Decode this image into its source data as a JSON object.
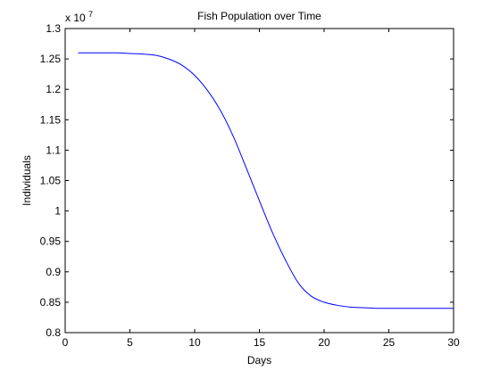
{
  "chart_data": {
    "type": "line",
    "title": "Fish Population over Time",
    "xlabel": "Days",
    "ylabel": "Individuals",
    "xlim": [
      0,
      30
    ],
    "ylim": [
      0.8,
      1.3
    ],
    "xticks": [
      0,
      5,
      10,
      15,
      20,
      25,
      30
    ],
    "yticks": [
      0.8,
      0.85,
      0.9,
      0.95,
      1,
      1.05,
      1.1,
      1.15,
      1.2,
      1.25,
      1.3
    ],
    "y_multiplier": {
      "base": "x 10",
      "exponent": "7"
    },
    "grid": false,
    "line_color": "#0000ff",
    "series": [
      {
        "x": [
          1,
          2,
          3,
          4,
          5,
          6,
          7,
          8,
          9,
          10,
          11,
          12,
          13,
          14,
          15,
          16,
          17,
          18,
          19,
          20,
          21,
          22,
          23,
          24,
          25,
          26,
          27,
          28,
          29,
          30
        ],
        "values": [
          1.26,
          1.26,
          1.26,
          1.26,
          1.259,
          1.258,
          1.256,
          1.25,
          1.24,
          1.223,
          1.198,
          1.165,
          1.122,
          1.07,
          1.017,
          0.965,
          0.92,
          0.882,
          0.86,
          0.85,
          0.845,
          0.842,
          0.841,
          0.84,
          0.84,
          0.84,
          0.84,
          0.84,
          0.84,
          0.84
        ]
      }
    ]
  }
}
